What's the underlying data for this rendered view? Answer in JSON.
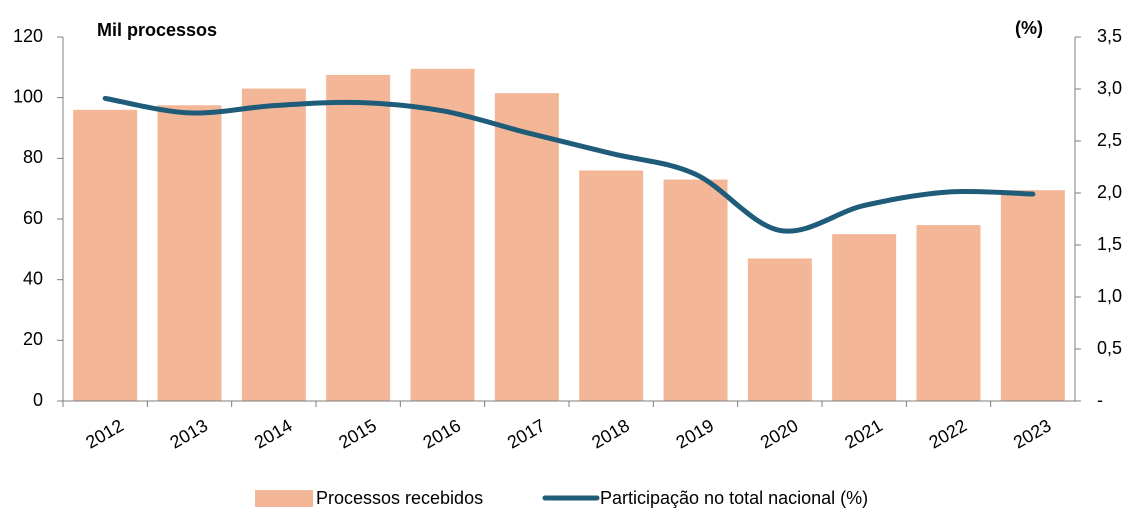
{
  "chart_data": {
    "type": "bar-line",
    "title": "Mil processos",
    "y2_label": "(%)",
    "categories": [
      "2012",
      "2013",
      "2014",
      "2015",
      "2016",
      "2017",
      "2018",
      "2019",
      "2020",
      "2021",
      "2022",
      "2023"
    ],
    "series": [
      {
        "name": "Processos recebidos",
        "type": "bar",
        "color": "#f3b797",
        "values": [
          96,
          97.5,
          103,
          107.5,
          109.5,
          101.5,
          76,
          73,
          47,
          55,
          58,
          69.5
        ]
      },
      {
        "name": "Participação no total nacional (%)",
        "type": "line",
        "axis": "y2",
        "color": "#1f5c7a",
        "values": [
          2.91,
          2.77,
          2.84,
          2.87,
          2.79,
          2.58,
          2.38,
          2.18,
          1.64,
          1.88,
          2.01,
          1.99
        ]
      }
    ],
    "ylim": [
      0,
      120
    ],
    "yticks": [
      0,
      20,
      40,
      60,
      80,
      100,
      120
    ],
    "y2lim": [
      0,
      3.5
    ],
    "y2ticks": [
      {
        "value": 0,
        "label": "-"
      },
      {
        "value": 0.5,
        "label": "0,5"
      },
      {
        "value": 1,
        "label": "1,0"
      },
      {
        "value": 1.5,
        "label": "1,5"
      },
      {
        "value": 2,
        "label": "2,0"
      },
      {
        "value": 2.5,
        "label": "2,5"
      },
      {
        "value": 3,
        "label": "3,0"
      },
      {
        "value": 3.5,
        "label": "3,5"
      }
    ],
    "legend": "bottom"
  }
}
